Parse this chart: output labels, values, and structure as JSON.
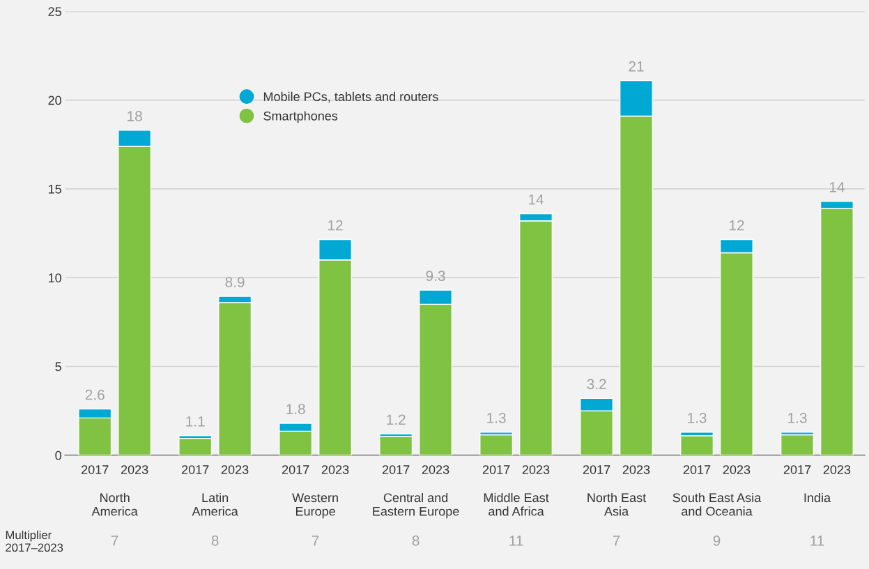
{
  "chart_data": {
    "type": "bar",
    "stacked": true,
    "categories": [
      "2017",
      "2023",
      "2017",
      "2023",
      "2017",
      "2023",
      "2017",
      "2023",
      "2017",
      "2023",
      "2017",
      "2023",
      "2017",
      "2023",
      "2017",
      "2023"
    ],
    "series": [
      {
        "name": "Smartphones",
        "color": "#80c241",
        "values": [
          2.1,
          17.4,
          0.95,
          8.6,
          1.35,
          11.0,
          1.05,
          8.5,
          1.15,
          13.2,
          2.5,
          19.1,
          1.1,
          11.4,
          1.15,
          13.9
        ]
      },
      {
        "name": "Mobile PCs, tablets and routers",
        "color": "#00a9d4",
        "values": [
          0.5,
          0.9,
          0.15,
          0.35,
          0.45,
          1.15,
          0.15,
          0.8,
          0.15,
          0.4,
          0.7,
          2.0,
          0.2,
          0.75,
          0.15,
          0.4
        ]
      }
    ],
    "totals": [
      "2.6",
      "18",
      "1.1",
      "8.9",
      "1.8",
      "12",
      "1.2",
      "9.3",
      "1.3",
      "14",
      "3.2",
      "21",
      "1.3",
      "12",
      "1.3",
      "14"
    ],
    "annotations": [
      "North\nAmerica",
      "Latin\nAmerica",
      "Western\nEurope",
      "Central and\nEastern Europe",
      "Middle East\nand Africa",
      "North East\nAsia",
      "South East Asia\nand Oceania",
      "India",
      "Multiplier\n2017–2023",
      "7",
      "8",
      "7",
      "8",
      "11",
      "7",
      "9",
      "11"
    ],
    "ylim": [
      0,
      25
    ],
    "yticks": [
      0,
      5,
      10,
      15,
      20,
      25
    ],
    "grid": "y",
    "legend": "top left"
  }
}
